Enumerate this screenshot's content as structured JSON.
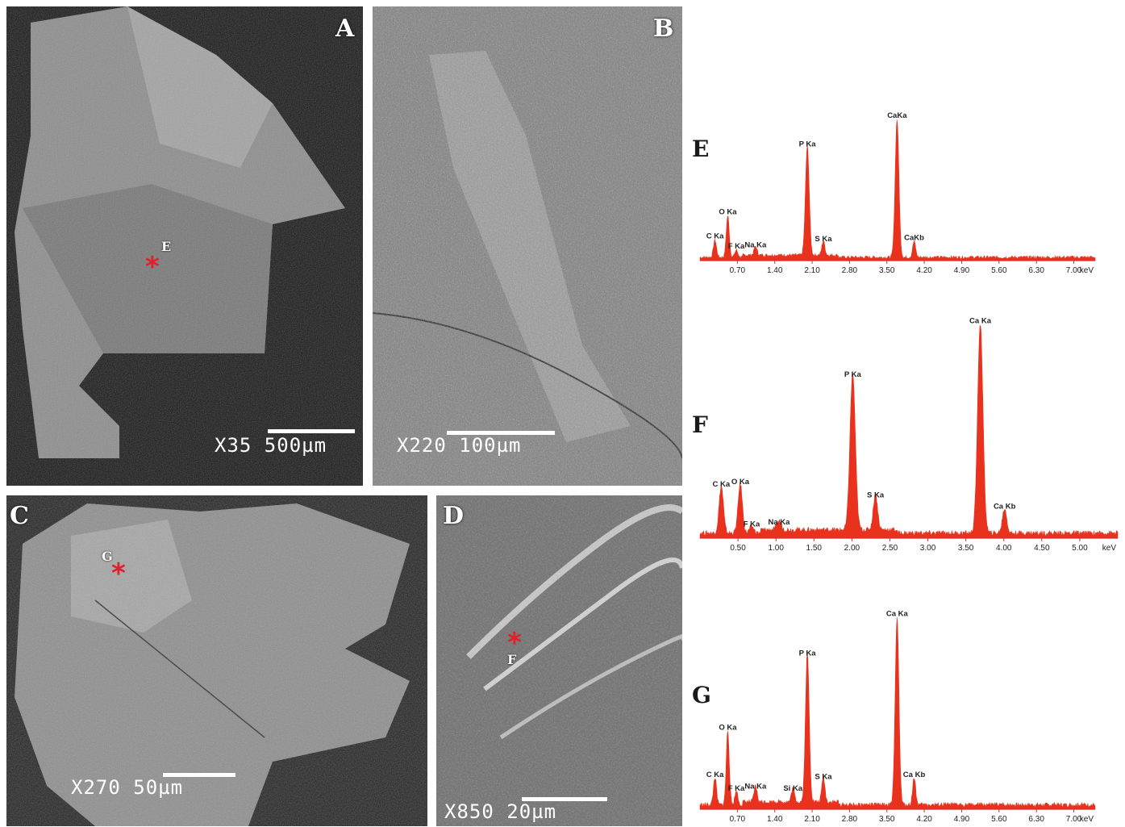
{
  "panels": {
    "A": {
      "letter": "A",
      "scale_label": "X35 500µm",
      "marker": "E"
    },
    "B": {
      "letter": "B",
      "scale_label": "X220 100µm"
    },
    "C": {
      "letter": "C",
      "scale_label": "X270 50µm",
      "marker": "G"
    },
    "D": {
      "letter": "D",
      "scale_label": "X850 20µm",
      "marker": "F"
    }
  },
  "colors": {
    "spectrum": "#e8321e",
    "axis": "#d0303a",
    "baseline": "#4040a0",
    "marker": "#e0202a"
  },
  "chart_data": [
    {
      "type": "area",
      "label": "E",
      "xlabel": "keV",
      "xlim": [
        0,
        7.4
      ],
      "ylim": [
        0,
        100
      ],
      "tick_labels": [
        "0.70",
        "1.40",
        "2.10",
        "2.80",
        "3.50",
        "4.20",
        "4.90",
        "5.60",
        "6.30",
        "7.00"
      ],
      "ticks": [
        0.7,
        1.4,
        2.1,
        2.8,
        3.5,
        4.2,
        4.9,
        5.6,
        6.3,
        7.0
      ],
      "peaks": [
        {
          "label": "C Ka",
          "x": 0.28,
          "y": 12
        },
        {
          "label": "O Ka",
          "x": 0.52,
          "y": 29
        },
        {
          "label": "F Ka",
          "x": 0.68,
          "y": 5
        },
        {
          "label": "Na Ka",
          "x": 1.04,
          "y": 6
        },
        {
          "label": "P Ka",
          "x": 2.01,
          "y": 76
        },
        {
          "label": "S Ka",
          "x": 2.31,
          "y": 10
        },
        {
          "label": "CaKa",
          "x": 3.69,
          "y": 96
        },
        {
          "label": "CaKb",
          "x": 4.01,
          "y": 11
        }
      ]
    },
    {
      "type": "area",
      "label": "F",
      "xlabel": "keV",
      "xlim": [
        0,
        5.5
      ],
      "ylim": [
        0,
        100
      ],
      "tick_labels": [
        "0.50",
        "1.00",
        "1.50",
        "2.00",
        "2.50",
        "3.00",
        "3.50",
        "4.00",
        "4.50",
        "5.00"
      ],
      "ticks": [
        0.5,
        1.0,
        1.5,
        2.0,
        2.5,
        3.0,
        3.5,
        4.0,
        4.5,
        5.0
      ],
      "peaks": [
        {
          "label": "C Ka",
          "x": 0.28,
          "y": 21
        },
        {
          "label": "O Ka",
          "x": 0.53,
          "y": 22
        },
        {
          "label": "F Ka",
          "x": 0.68,
          "y": 3
        },
        {
          "label": "Na Ka",
          "x": 1.04,
          "y": 4
        },
        {
          "label": "P Ka",
          "x": 2.01,
          "y": 70
        },
        {
          "label": "S Ka",
          "x": 2.31,
          "y": 16
        },
        {
          "label": "Ca Ka",
          "x": 3.69,
          "y": 94
        },
        {
          "label": "Ca Kb",
          "x": 4.01,
          "y": 11
        }
      ]
    },
    {
      "type": "area",
      "label": "G",
      "xlabel": "keV",
      "xlim": [
        0,
        7.4
      ],
      "ylim": [
        0,
        100
      ],
      "tick_labels": [
        "0.70",
        "1.40",
        "2.10",
        "2.80",
        "3.50",
        "4.20",
        "4.90",
        "5.60",
        "6.30",
        "7.00"
      ],
      "ticks": [
        0.7,
        1.4,
        2.1,
        2.8,
        3.5,
        4.2,
        4.9,
        5.6,
        6.3,
        7.0
      ],
      "peaks": [
        {
          "label": "C Ka",
          "x": 0.28,
          "y": 14
        },
        {
          "label": "O Ka",
          "x": 0.52,
          "y": 38
        },
        {
          "label": "F Ka",
          "x": 0.68,
          "y": 7
        },
        {
          "label": "Na Ka",
          "x": 1.04,
          "y": 8
        },
        {
          "label": "Si Ka",
          "x": 1.74,
          "y": 7
        },
        {
          "label": "P Ka",
          "x": 2.01,
          "y": 76
        },
        {
          "label": "S Ka",
          "x": 2.31,
          "y": 13
        },
        {
          "label": "Ca Ka",
          "x": 3.69,
          "y": 96
        },
        {
          "label": "Ca Kb",
          "x": 4.01,
          "y": 14
        }
      ]
    }
  ]
}
